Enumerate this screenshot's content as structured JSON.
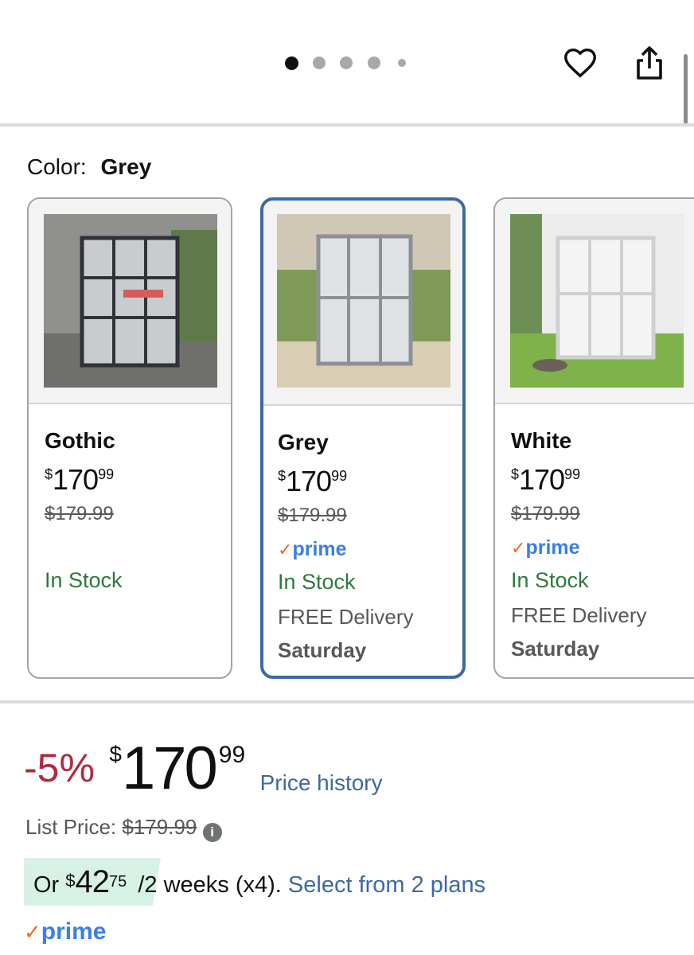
{
  "carousel": {
    "dot_count": 5,
    "active_index": 0
  },
  "header": {
    "favorite_icon": "heart-icon",
    "share_icon": "share-icon"
  },
  "color_selector": {
    "label": "Color:",
    "selected": "Grey",
    "options": [
      {
        "name": "Gothic",
        "price_whole": "170",
        "price_fraction": "99",
        "currency": "$",
        "list_price": "$179.99",
        "prime": false,
        "stock": "In Stock",
        "delivery": "",
        "delivery_day": "",
        "selected": false
      },
      {
        "name": "Grey",
        "price_whole": "170",
        "price_fraction": "99",
        "currency": "$",
        "list_price": "$179.99",
        "prime": true,
        "prime_label": "prime",
        "stock": "In Stock",
        "delivery": "FREE Delivery",
        "delivery_day": "Saturday",
        "selected": true
      },
      {
        "name": "White",
        "price_whole": "170",
        "price_fraction": "99",
        "currency": "$",
        "list_price": "$179.99",
        "prime": true,
        "prime_label": "prime",
        "stock": "In Stock",
        "delivery": "FREE Delivery",
        "delivery_day": "Saturday",
        "selected": false
      }
    ]
  },
  "pricing": {
    "discount": "-5%",
    "currency": "$",
    "price_whole": "170",
    "price_fraction": "99",
    "price_history_link": "Price history",
    "list_price_label": "List Price:",
    "list_price": "$179.99",
    "installment_prefix": "Or",
    "installment_currency": "$",
    "installment_whole": "42",
    "installment_fraction": "75",
    "installment_terms": "/2 weeks (x4).",
    "plans_link": "Select from 2 plans",
    "prime_label": "prime"
  },
  "colors": {
    "accent_link": "#3d6aa5",
    "discount": "#b12a3c",
    "stock": "#2d7a3b",
    "prime": "#3a7ee8",
    "prime_check": "#f06a22",
    "installment_bg": "#d7f2e4",
    "selected_border": "#3d6aa5"
  }
}
